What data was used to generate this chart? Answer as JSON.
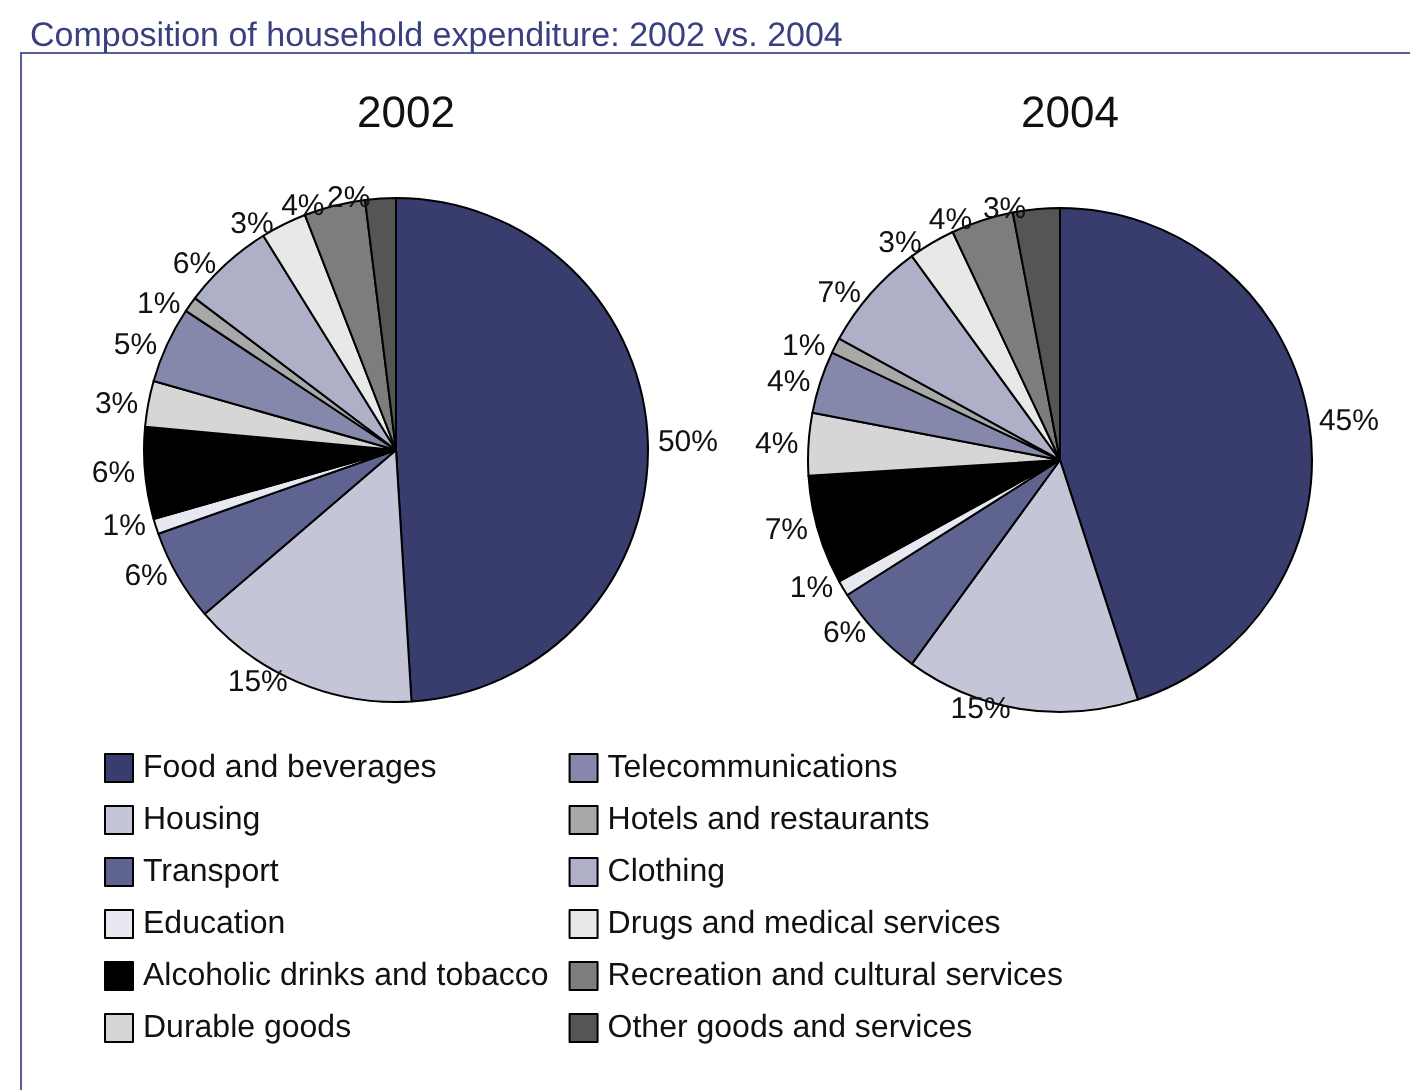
{
  "chart_data": {
    "type": "pie",
    "title": "Composition of household expenditure: 2002 vs. 2004",
    "legend": "bottom",
    "categories": [
      "Food and beverages",
      "Housing",
      "Transport",
      "Education",
      "Alcoholic drinks and tobacco",
      "Durable goods",
      "Telecommunications",
      "Hotels and restaurants",
      "Clothing",
      "Drugs and medical services",
      "Recreation and cultural services",
      "Other goods and services"
    ],
    "colors": [
      "#383d6e",
      "#c4c6d8",
      "#5f6390",
      "#e8e9f0",
      "#000000",
      "#d6d6d6",
      "#8588ab",
      "#a8a8a8",
      "#aeb0c8",
      "#e8e8e8",
      "#7d7d7d",
      "#555555"
    ],
    "series": [
      {
        "name": "2002",
        "values": [
          50,
          15,
          6,
          1,
          6,
          3,
          5,
          1,
          6,
          3,
          4,
          2
        ],
        "value_labels": [
          "50%",
          "15%",
          "6%",
          "1%",
          "6%",
          "3%",
          "5%",
          "1%",
          "6%",
          "3%",
          "4%",
          "2%"
        ]
      },
      {
        "name": "2004",
        "values": [
          45,
          15,
          6,
          1,
          7,
          4,
          4,
          1,
          7,
          3,
          4,
          3
        ],
        "value_labels": [
          "45%",
          "15%",
          "6%",
          "1%",
          "7%",
          "4%",
          "4%",
          "1%",
          "7%",
          "3%",
          "4%",
          "3%"
        ]
      }
    ]
  }
}
